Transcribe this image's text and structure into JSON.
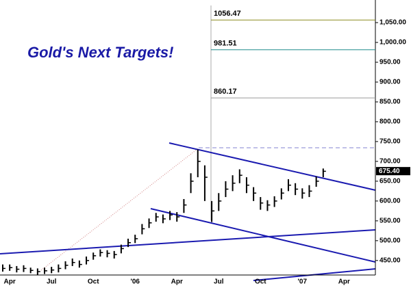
{
  "chart_data": {
    "type": "ohlc",
    "title": "Gold's Next Targets!",
    "categories": [
      null,
      "Apr",
      null,
      null,
      null,
      null,
      null,
      "Jul",
      null,
      null,
      null,
      null,
      null,
      "Oct",
      null,
      null,
      null,
      null,
      null,
      "'06",
      null,
      null,
      null,
      null,
      null,
      "Apr",
      null,
      null,
      null,
      null,
      null,
      "Jul",
      null,
      null,
      null,
      null,
      null,
      "Oct",
      null,
      null,
      null,
      null,
      null,
      "'07",
      null,
      null,
      null,
      null,
      null,
      "Apr",
      null,
      null,
      null,
      null
    ],
    "high": [
      440,
      440,
      436,
      438,
      432,
      430,
      432,
      434,
      440,
      448,
      455,
      450,
      460,
      470,
      478,
      476,
      474,
      490,
      505,
      515,
      542,
      556,
      570,
      566,
      575,
      572,
      605,
      670,
      730,
      690,
      600,
      620,
      650,
      665,
      680,
      660,
      635,
      610,
      602,
      612,
      632,
      655,
      645,
      632,
      640,
      662,
      682,
      null,
      null,
      null,
      null,
      null,
      null,
      null
    ],
    "low": [
      422,
      424,
      420,
      421,
      418,
      414,
      416,
      418,
      420,
      428,
      436,
      432,
      440,
      452,
      460,
      458,
      455,
      468,
      484,
      494,
      516,
      532,
      548,
      544,
      552,
      548,
      570,
      620,
      660,
      600,
      547,
      575,
      610,
      625,
      645,
      620,
      600,
      578,
      575,
      585,
      604,
      625,
      615,
      606,
      610,
      636,
      660,
      null,
      null,
      null,
      null,
      null,
      null,
      null
    ],
    "close": [
      430,
      432,
      428,
      430,
      425,
      422,
      424,
      426,
      430,
      438,
      445,
      440,
      450,
      462,
      470,
      468,
      465,
      480,
      495,
      505,
      530,
      545,
      560,
      555,
      565,
      560,
      590,
      650,
      700,
      660,
      575,
      600,
      630,
      645,
      665,
      640,
      620,
      595,
      590,
      600,
      620,
      640,
      630,
      620,
      625,
      650,
      675,
      null,
      null,
      null,
      null,
      null,
      null,
      null
    ],
    "color": "#000000",
    "ylim": [
      391,
      1107
    ],
    "yticks": [
      {
        "value": 450,
        "label": "450.00"
      },
      {
        "value": 500,
        "label": "500.00"
      },
      {
        "value": 550,
        "label": "550.00"
      },
      {
        "value": 600,
        "label": "600.00"
      },
      {
        "value": 650,
        "label": "650.00"
      },
      {
        "value": 700,
        "label": "700.00"
      },
      {
        "value": 750,
        "label": "750.00"
      },
      {
        "value": 800,
        "label": "800.00"
      },
      {
        "value": 850,
        "label": "850.00"
      },
      {
        "value": 900,
        "label": "900.00"
      },
      {
        "value": 950,
        "label": "950.00"
      },
      {
        "value": 1000,
        "label": "1,000.00"
      },
      {
        "value": 1050,
        "label": "1,050.00"
      }
    ],
    "targets": [
      {
        "value": 1056.47,
        "color": "#8a8a1e"
      },
      {
        "value": 981.51,
        "color": "#1e8a8a"
      },
      {
        "value": 860.17,
        "color": "#9a9a9a"
      }
    ],
    "last_price": {
      "value": 675.4,
      "label": "675.40"
    }
  }
}
